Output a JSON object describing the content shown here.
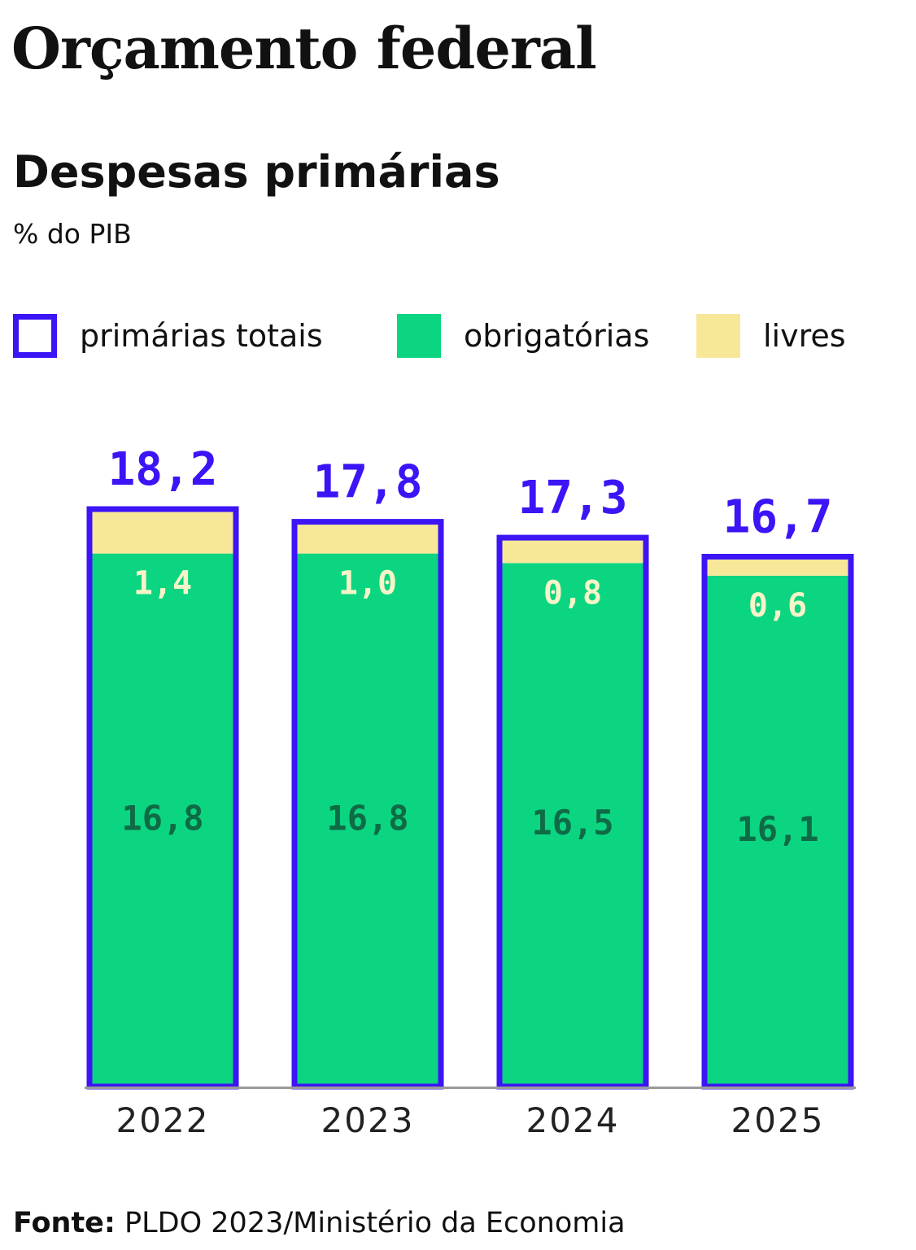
{
  "header": {
    "title": "Orçamento federal",
    "subtitle": "Despesas primárias",
    "unit": "% do PIB"
  },
  "legend": [
    {
      "label": "primárias totais",
      "color": "#3c14f5"
    },
    {
      "label": "obrigatórias",
      "color": "#0bd581"
    },
    {
      "label": "livres",
      "color": "#f7e899"
    }
  ],
  "colors": {
    "total": "#3c14f5",
    "obrigatorias": "#0bd581",
    "livres": "#f7e899",
    "obrigatorias_label": "#0e6b45",
    "livres_label": "#f7f4c8",
    "axis": "#9a9a9a",
    "tick_label": "#222222"
  },
  "chart_data": {
    "type": "bar",
    "stacked": true,
    "categories": [
      "2022",
      "2023",
      "2024",
      "2025"
    ],
    "series": [
      {
        "name": "obrigatórias",
        "values": [
          16.8,
          16.8,
          16.5,
          16.1
        ],
        "labels": [
          "16,8",
          "16,8",
          "16,5",
          "16,1"
        ]
      },
      {
        "name": "livres",
        "values": [
          1.4,
          1.0,
          0.8,
          0.6
        ],
        "labels": [
          "1,4",
          "1,0",
          "0,8",
          "0,6"
        ]
      }
    ],
    "totals": {
      "name": "primárias totais",
      "values": [
        18.2,
        17.8,
        17.3,
        16.7
      ],
      "labels": [
        "18,2",
        "17,8",
        "17,3",
        "16,7"
      ]
    },
    "ylim": [
      0,
      18.2
    ],
    "grid": false,
    "legend_position": "top-left"
  },
  "footer": {
    "source_label": "Fonte:",
    "source_text": " PLDO 2023/Ministério da Economia"
  }
}
